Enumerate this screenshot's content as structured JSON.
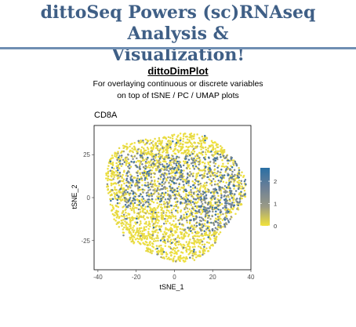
{
  "slide": {
    "title_line1": "dittoSeq Powers (sc)RNAseq Analysis &",
    "title_line2": "Visualization!",
    "function_name": "dittoDimPlot",
    "description_line1": "For overlaying continuous or discrete variables",
    "description_line2": "on top of tSNE / PC / UMAP plots"
  },
  "chart_data": {
    "type": "scatter",
    "title": "CD8A",
    "xlabel": "tSNE_1",
    "ylabel": "tSNE_2",
    "xlim": [
      -42,
      40
    ],
    "ylim": [
      -42,
      42
    ],
    "x_ticks": [
      "-40",
      "-20",
      "0",
      "20",
      "40"
    ],
    "y_ticks": [
      "25",
      "0",
      "-25"
    ],
    "x_tick_values": [
      -40,
      -20,
      0,
      20,
      40
    ],
    "y_tick_values": [
      25,
      0,
      -25
    ],
    "legend": {
      "position": "right",
      "labels": [
        "2",
        "1",
        "0"
      ],
      "values": [
        2,
        1,
        0
      ],
      "range": [
        0,
        2.6
      ],
      "colors": [
        "#f2e33a",
        "#9a9a86",
        "#6b7f97",
        "#2a6fa4"
      ]
    },
    "point_cloud": {
      "center": [
        0,
        2
      ],
      "radius_x": 36,
      "radius_y": 37,
      "expression_max": 2.6,
      "approx_points": 3000
    }
  }
}
